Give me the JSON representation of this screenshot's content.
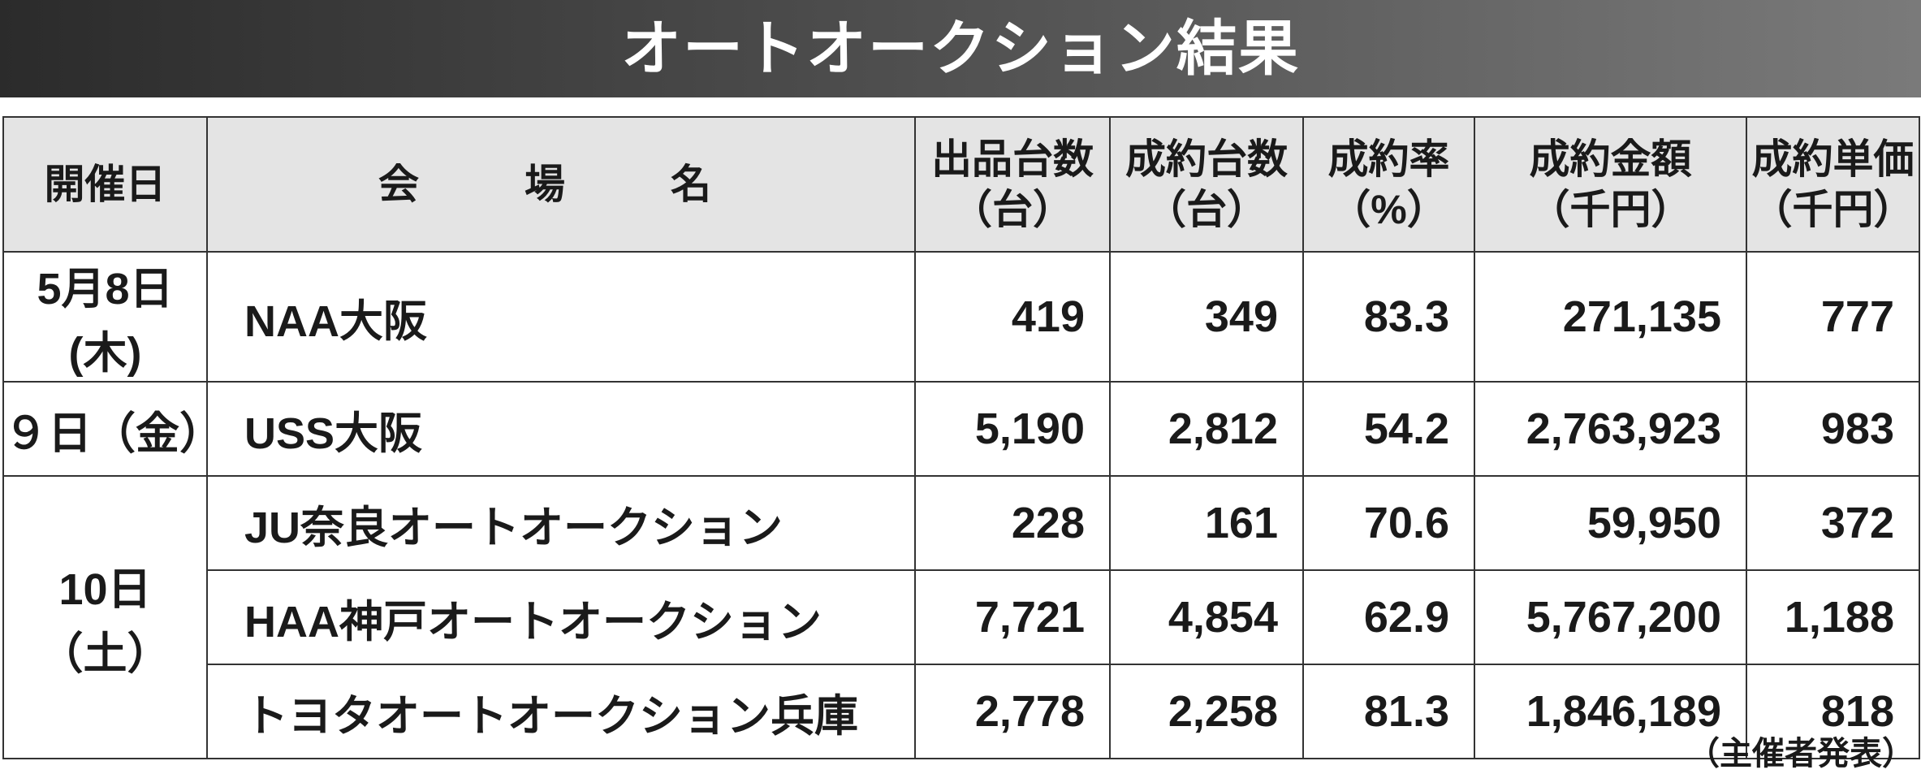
{
  "title": "オートオークション結果",
  "table": {
    "header": [
      {
        "label": "開催日"
      },
      {
        "label": "会　場　名"
      },
      {
        "label": "出品台数",
        "unit": "（台）"
      },
      {
        "label": "成約台数",
        "unit": "（台）"
      },
      {
        "label": "成約率",
        "unit": "（%）"
      },
      {
        "label": "成約金額",
        "unit": "（千円）"
      },
      {
        "label": "成約単価",
        "unit": "（千円）"
      }
    ],
    "groups": [
      {
        "date": "5月8日(木)",
        "rows": [
          {
            "venue": "NAA大阪",
            "values": [
              "419",
              "349",
              "83.3",
              "271,135",
              "777"
            ]
          }
        ]
      },
      {
        "date": "９日（金）",
        "rows": [
          {
            "venue": "USS大阪",
            "values": [
              "5,190",
              "2,812",
              "54.2",
              "2,763,923",
              "983"
            ]
          }
        ]
      },
      {
        "date": "10日（土）",
        "rows": [
          {
            "venue": "JU奈良オートオークション",
            "values": [
              "228",
              "161",
              "70.6",
              "59,950",
              "372"
            ]
          },
          {
            "venue": "HAA神戸オートオークション",
            "values": [
              "7,721",
              "4,854",
              "62.9",
              "5,767,200",
              "1,188"
            ]
          },
          {
            "venue": "トヨタオートオークション兵庫",
            "values": [
              "2,778",
              "2,258",
              "81.3",
              "1,846,189",
              "818"
            ]
          }
        ]
      }
    ]
  },
  "footer": "（主催者発表）"
}
